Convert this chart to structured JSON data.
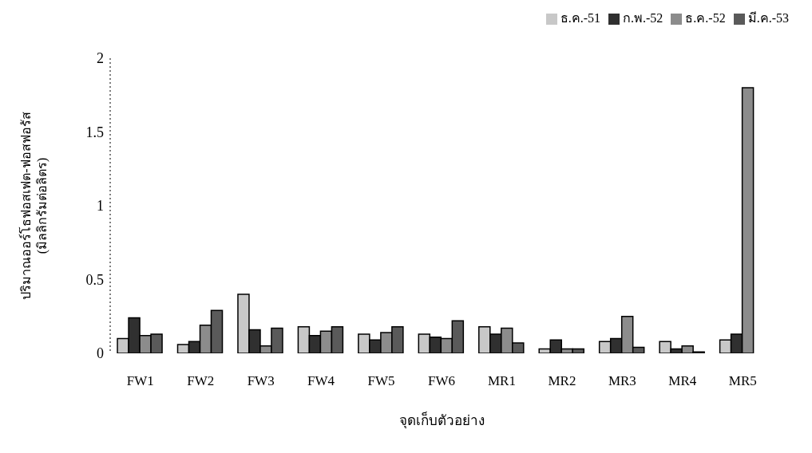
{
  "chart_data": {
    "type": "bar",
    "xlabel": "จุดเก็บตัวอย่าง",
    "ylabel": "ปริมาณออร์โธฟอสเฟต-ฟอสฟอรัส\n(มิลลิกรัมต่อลิตร)",
    "categories": [
      "FW1",
      "FW2",
      "FW3",
      "FW4",
      "FW5",
      "FW6",
      "MR1",
      "MR2",
      "MR3",
      "MR4",
      "MR5"
    ],
    "series": [
      {
        "name": "ธ.ค.-51",
        "color": "#c8c8c8",
        "values": [
          0.1,
          0.06,
          0.4,
          0.18,
          0.13,
          0.13,
          0.18,
          0.03,
          0.08,
          0.08,
          0.09
        ]
      },
      {
        "name": "ก.พ.-52",
        "color": "#303030",
        "values": [
          0.24,
          0.08,
          0.16,
          0.12,
          0.09,
          0.11,
          0.13,
          0.09,
          0.1,
          0.03,
          0.13
        ]
      },
      {
        "name": "ธ.ค.-52",
        "color": "#8c8c8c",
        "values": [
          0.12,
          0.19,
          0.05,
          0.15,
          0.14,
          0.1,
          0.17,
          0.03,
          0.25,
          0.05,
          1.8
        ]
      },
      {
        "name": "มี.ค.-53",
        "color": "#5a5a5a",
        "values": [
          0.13,
          0.29,
          0.17,
          0.18,
          0.18,
          0.22,
          0.07,
          0.03,
          0.04,
          0.01,
          null
        ]
      }
    ],
    "ylim": [
      0,
      2
    ],
    "yticks": [
      0,
      0.5,
      1,
      1.5,
      2
    ],
    "grid": false,
    "legend": "top right"
  }
}
